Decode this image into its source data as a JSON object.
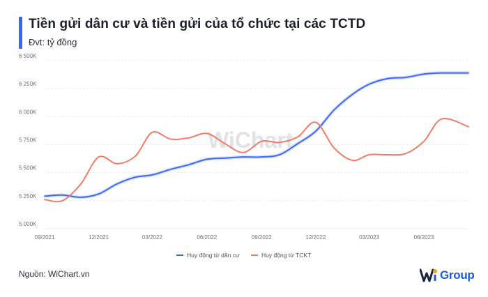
{
  "header": {
    "title": "Tiền gửi dân cư và tiền gửi của tổ chức tại các TCTD",
    "unit": "Đvt: tỷ đồng"
  },
  "footer": {
    "source": "Nguồn: WiChart.vn",
    "brand_text": "Group"
  },
  "colors": {
    "accent": "#2f6bf0",
    "series_resident": "#3d6af2",
    "series_org": "#f37a66",
    "grid": "#e6e8ec"
  },
  "chart_data": {
    "type": "line",
    "watermark": "WiChart",
    "ylim": [
      5000000,
      6500000
    ],
    "yticks": [
      5000000,
      5250000,
      5500000,
      5750000,
      6000000,
      6250000,
      6500000
    ],
    "ytick_labels": [
      "5 000K",
      "5 250K",
      "5 500K",
      "5 750K",
      "6 000K",
      "6 250K",
      "6 500K"
    ],
    "x_range": [
      "2021-09-01",
      "2023-08-15"
    ],
    "xticks": [
      "2021-09-01",
      "2021-12-01",
      "2022-03-01",
      "2022-06-01",
      "2022-09-01",
      "2022-12-01",
      "2023-03-01",
      "2023-06-01"
    ],
    "xtick_labels": [
      "09/2021",
      "12/2021",
      "03/2022",
      "06/2022",
      "09/2022",
      "12/2022",
      "03/2023",
      "06/2023"
    ],
    "legend_position": "bottom",
    "series": [
      {
        "name": "Huy động từ dân cư",
        "color": "#3d6af2",
        "points": [
          [
            "2021-09-01",
            5290000
          ],
          [
            "2021-10-01",
            5300000
          ],
          [
            "2021-11-01",
            5280000
          ],
          [
            "2021-12-01",
            5310000
          ],
          [
            "2022-01-01",
            5400000
          ],
          [
            "2022-02-01",
            5460000
          ],
          [
            "2022-03-01",
            5480000
          ],
          [
            "2022-04-01",
            5530000
          ],
          [
            "2022-05-01",
            5570000
          ],
          [
            "2022-06-01",
            5620000
          ],
          [
            "2022-07-01",
            5630000
          ],
          [
            "2022-08-01",
            5640000
          ],
          [
            "2022-09-01",
            5640000
          ],
          [
            "2022-10-01",
            5660000
          ],
          [
            "2022-11-01",
            5760000
          ],
          [
            "2022-12-01",
            5870000
          ],
          [
            "2023-01-01",
            6060000
          ],
          [
            "2023-02-01",
            6200000
          ],
          [
            "2023-03-01",
            6290000
          ],
          [
            "2023-04-01",
            6340000
          ],
          [
            "2023-05-01",
            6350000
          ],
          [
            "2023-06-01",
            6380000
          ],
          [
            "2023-07-01",
            6390000
          ],
          [
            "2023-08-15",
            6390000
          ]
        ]
      },
      {
        "name": "Huy động từ TCKT",
        "color": "#f37a66",
        "points": [
          [
            "2021-09-01",
            5260000
          ],
          [
            "2021-10-01",
            5250000
          ],
          [
            "2021-11-01",
            5400000
          ],
          [
            "2021-12-01",
            5640000
          ],
          [
            "2022-01-01",
            5580000
          ],
          [
            "2022-02-01",
            5650000
          ],
          [
            "2022-03-01",
            5860000
          ],
          [
            "2022-04-01",
            5800000
          ],
          [
            "2022-05-01",
            5810000
          ],
          [
            "2022-06-01",
            5850000
          ],
          [
            "2022-07-01",
            5760000
          ],
          [
            "2022-08-01",
            5680000
          ],
          [
            "2022-09-01",
            5780000
          ],
          [
            "2022-10-01",
            5770000
          ],
          [
            "2022-11-01",
            5820000
          ],
          [
            "2022-12-01",
            5950000
          ],
          [
            "2023-01-01",
            5720000
          ],
          [
            "2023-02-01",
            5610000
          ],
          [
            "2023-03-01",
            5660000
          ],
          [
            "2023-04-01",
            5660000
          ],
          [
            "2023-05-01",
            5670000
          ],
          [
            "2023-06-01",
            5780000
          ],
          [
            "2023-07-01",
            5980000
          ],
          [
            "2023-08-15",
            5910000
          ]
        ]
      }
    ]
  }
}
